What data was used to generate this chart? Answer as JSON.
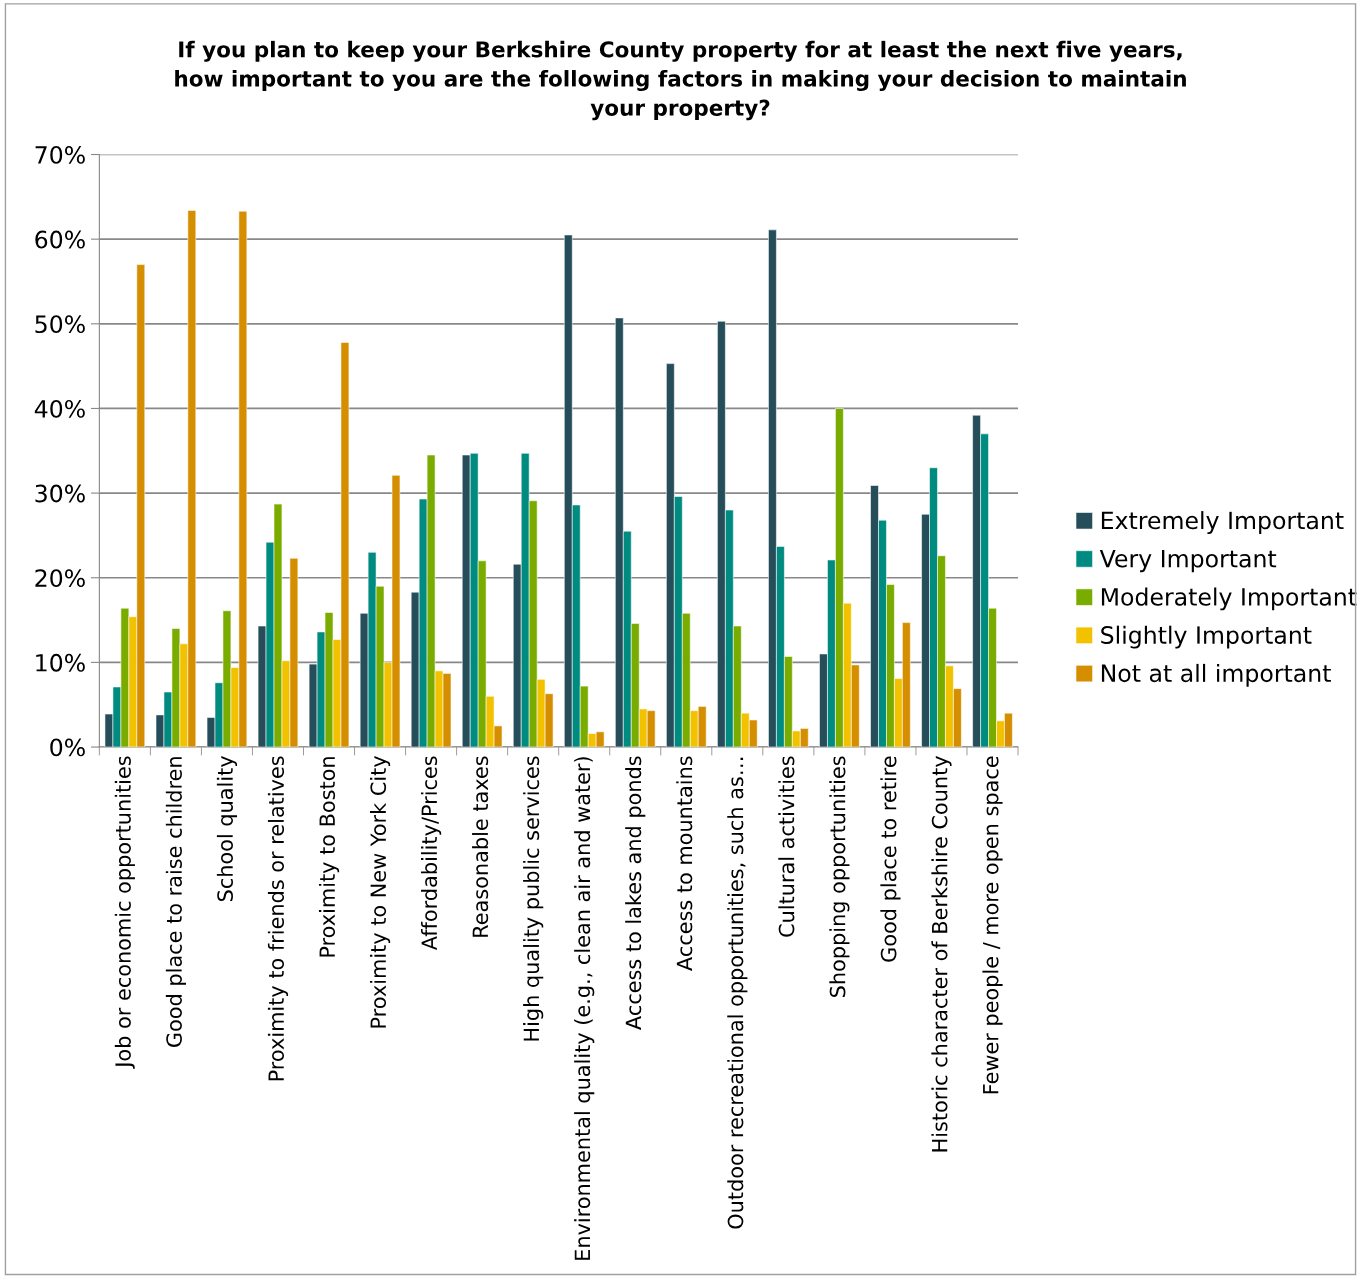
{
  "chart_data": {
    "type": "bar",
    "title": "If you plan to keep your Berkshire County property for at least the next five years,\nhow important to you are the following factors in making your decision to maintain\nyour property?",
    "categories": [
      "Job or economic opportunities",
      "Good place to raise children",
      "School quality",
      "Proximity to friends or relatives",
      "Proximity to Boston",
      "Proximity to New York City",
      "Affordability/Prices",
      "Reasonable taxes",
      "High quality public services",
      "Environmental quality (e.g., clean air and water)",
      "Access to lakes and ponds",
      "Access to mountains",
      "Outdoor recreational opportunities, such as…",
      "Cultural activities",
      "Shopping opportunities",
      "Good place to retire",
      "Historic character of Berkshire County",
      "Fewer people / more open space"
    ],
    "series": [
      {
        "name": "Extremely Important",
        "color": "#254e5a",
        "values": [
          3.9,
          3.8,
          3.5,
          14.3,
          9.8,
          15.8,
          18.3,
          34.5,
          21.6,
          60.5,
          50.7,
          45.3,
          50.3,
          61.1,
          11.0,
          30.9,
          27.5,
          39.2
        ]
      },
      {
        "name": "Very Important",
        "color": "#008b80",
        "values": [
          7.1,
          6.5,
          7.6,
          24.2,
          13.6,
          23.0,
          29.3,
          34.7,
          34.7,
          28.6,
          25.5,
          29.6,
          28.0,
          23.7,
          22.1,
          26.8,
          33.0,
          37.0
        ]
      },
      {
        "name": "Moderately Important",
        "color": "#7aac00",
        "values": [
          16.4,
          14.0,
          16.1,
          28.7,
          15.9,
          19.0,
          34.5,
          22.0,
          29.1,
          7.2,
          14.6,
          15.8,
          14.3,
          10.7,
          40.0,
          19.2,
          22.6,
          16.4
        ]
      },
      {
        "name": "Slightly Important",
        "color": "#f2c200",
        "values": [
          15.4,
          12.2,
          9.4,
          10.2,
          12.7,
          10.0,
          9.0,
          6.0,
          8.0,
          1.6,
          4.5,
          4.3,
          4.0,
          1.9,
          17.0,
          8.1,
          9.6,
          3.1
        ]
      },
      {
        "name": "Not at all important",
        "color": "#d48e00",
        "values": [
          57.0,
          63.4,
          63.3,
          22.3,
          47.8,
          32.1,
          8.7,
          2.5,
          6.3,
          1.8,
          4.3,
          4.8,
          3.2,
          2.2,
          9.7,
          14.7,
          6.9,
          4.0
        ]
      }
    ],
    "ylim": [
      0,
      70
    ],
    "yticks": [
      {
        "value": 0,
        "label": "0%"
      },
      {
        "value": 10,
        "label": "10%"
      },
      {
        "value": 20,
        "label": "20%"
      },
      {
        "value": 30,
        "label": "30%"
      },
      {
        "value": 40,
        "label": "40%"
      },
      {
        "value": 50,
        "label": "50%"
      },
      {
        "value": 60,
        "label": "60%"
      },
      {
        "value": 70,
        "label": "70%"
      }
    ],
    "grid": "y",
    "legend": "right"
  }
}
